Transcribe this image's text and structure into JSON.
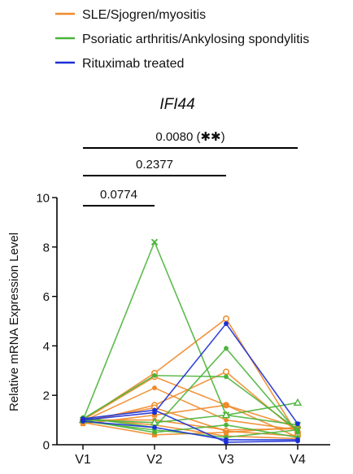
{
  "legend": [
    {
      "label": "SLE/Sjogren/myositis",
      "color": "#f08a2a"
    },
    {
      "label": "Psoriatic arthritis/Ankylosing spondylitis",
      "color": "#4bb43a"
    },
    {
      "label": "Rituximab treated",
      "color": "#1b2fd6"
    }
  ],
  "chart_data": {
    "type": "line",
    "title": "IFI44",
    "ylabel": "Relative mRNA Expression Level",
    "xlabel": "",
    "categories": [
      "V1",
      "V2",
      "V3",
      "V4"
    ],
    "ylim": [
      0,
      10
    ],
    "yticks": [
      "0",
      "2",
      "4",
      "6",
      "8",
      "10"
    ],
    "significance": [
      {
        "label": "0.0774",
        "from": "V1",
        "to": "V2"
      },
      {
        "label": "0.2377",
        "from": "V1",
        "to": "V3"
      },
      {
        "label": "0.0080 (✱✱)",
        "from": "V1",
        "to": "V4"
      }
    ],
    "series": [
      {
        "group": "SLE/Sjogren/myositis",
        "color": "#f08a2a",
        "marker": "open-circle",
        "values": [
          1.0,
          2.9,
          5.1,
          0.4
        ]
      },
      {
        "group": "SLE/Sjogren/myositis",
        "color": "#f08a2a",
        "marker": "open-circle",
        "values": [
          0.9,
          1.6,
          2.95,
          0.5
        ]
      },
      {
        "group": "SLE/Sjogren/myositis",
        "color": "#f08a2a",
        "marker": "dot",
        "values": [
          0.95,
          2.3,
          1.0,
          0.6
        ]
      },
      {
        "group": "SLE/Sjogren/myositis",
        "color": "#f08a2a",
        "marker": "open-circle",
        "values": [
          1.0,
          2.75,
          1.6,
          0.7
        ]
      },
      {
        "group": "SLE/Sjogren/myositis",
        "color": "#f08a2a",
        "marker": "square",
        "values": [
          0.85,
          1.2,
          1.6,
          0.3
        ]
      },
      {
        "group": "SLE/Sjogren/myositis",
        "color": "#f08a2a",
        "marker": "dot",
        "values": [
          1.0,
          1.0,
          0.6,
          0.65
        ]
      },
      {
        "group": "SLE/Sjogren/myositis",
        "color": "#f08a2a",
        "marker": "open-circle",
        "values": [
          0.95,
          1.5,
          0.55,
          0.35
        ]
      },
      {
        "group": "SLE/Sjogren/myositis",
        "color": "#f08a2a",
        "marker": "square",
        "values": [
          0.9,
          0.4,
          0.5,
          0.7
        ]
      },
      {
        "group": "SLE/Sjogren/myositis",
        "color": "#f08a2a",
        "marker": "dot",
        "values": [
          1.05,
          0.8,
          0.35,
          0.25
        ]
      },
      {
        "group": "Psoriatic arthritis/Ankylosing spondylitis",
        "color": "#4bb43a",
        "marker": "cross",
        "values": [
          1.0,
          8.2,
          1.2,
          0.8
        ]
      },
      {
        "group": "Psoriatic arthritis/Ankylosing spondylitis",
        "color": "#4bb43a",
        "marker": "dot",
        "values": [
          1.1,
          0.7,
          3.9,
          0.5
        ]
      },
      {
        "group": "Psoriatic arthritis/Ankylosing spondylitis",
        "color": "#4bb43a",
        "marker": "triangle",
        "values": [
          1.0,
          0.9,
          1.2,
          1.7
        ]
      },
      {
        "group": "Psoriatic arthritis/Ankylosing spondylitis",
        "color": "#4bb43a",
        "marker": "dot",
        "values": [
          1.05,
          2.8,
          2.75,
          0.6
        ]
      },
      {
        "group": "Psoriatic arthritis/Ankylosing spondylitis",
        "color": "#4bb43a",
        "marker": "dot",
        "values": [
          0.95,
          0.6,
          0.3,
          0.6
        ]
      },
      {
        "group": "Psoriatic arthritis/Ankylosing spondylitis",
        "color": "#4bb43a",
        "marker": "dot",
        "values": [
          1.0,
          0.5,
          0.8,
          0.3
        ]
      },
      {
        "group": "Rituximab treated",
        "color": "#1b2fd6",
        "marker": "dot",
        "values": [
          1.0,
          1.3,
          4.9,
          0.85
        ]
      },
      {
        "group": "Rituximab treated",
        "color": "#1b2fd6",
        "marker": "dot",
        "values": [
          1.05,
          1.4,
          0.1,
          0.15
        ]
      },
      {
        "group": "Rituximab treated",
        "color": "#1b2fd6",
        "marker": "dot",
        "values": [
          0.95,
          0.7,
          0.2,
          0.2
        ]
      }
    ]
  }
}
